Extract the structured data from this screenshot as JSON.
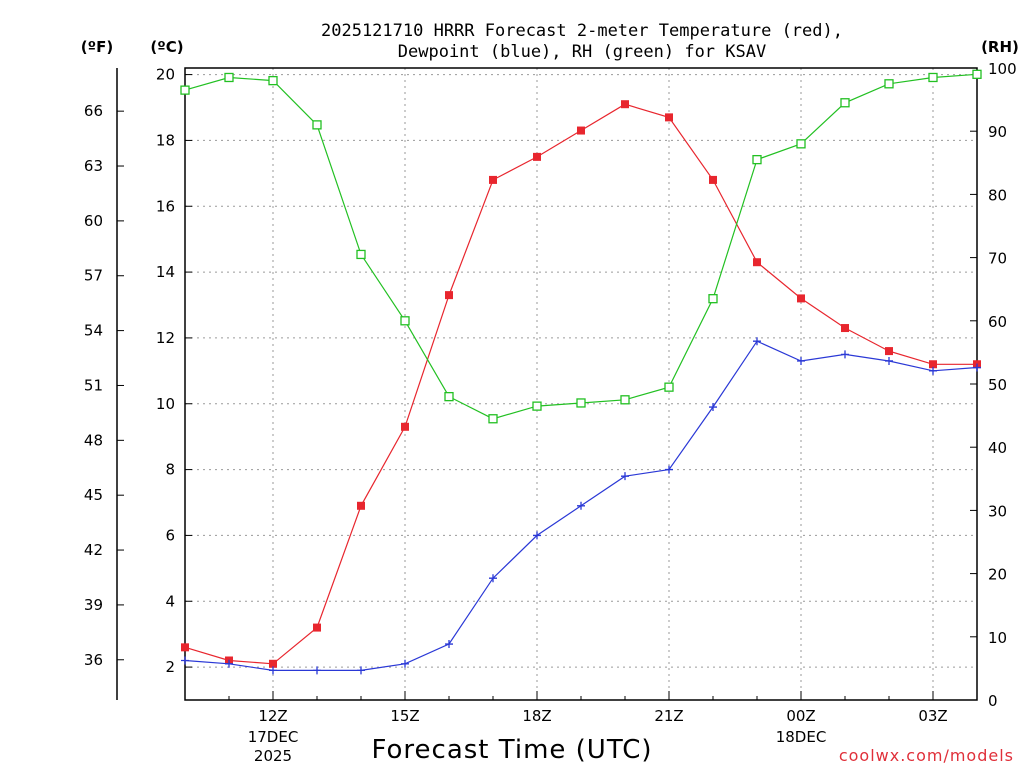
{
  "chart_data": {
    "type": "line",
    "title_line1": "2025121710 HRRR Forecast 2-meter Temperature (red),",
    "title_line2": "Dewpoint (blue), RH (green) for KSAV",
    "xlabel": "Forecast Time (UTC)",
    "credit": "coolwx.com/models",
    "units": {
      "fahrenheit": "(ºF)",
      "celsius": "(ºC)",
      "rh": "(RH)"
    },
    "left_axis_f": {
      "ticks": [
        "36",
        "39",
        "42",
        "45",
        "48",
        "51",
        "54",
        "57",
        "60",
        "63",
        "66"
      ]
    },
    "left_axis_c": {
      "ylim": [
        1.0,
        20.2
      ],
      "ticks": [
        "2",
        "4",
        "6",
        "8",
        "10",
        "12",
        "14",
        "16",
        "18",
        "20"
      ]
    },
    "right_axis_rh": {
      "ylim": [
        0,
        100
      ],
      "ticks": [
        "0",
        "10",
        "20",
        "30",
        "40",
        "50",
        "60",
        "70",
        "80",
        "90",
        "100"
      ]
    },
    "x_ticks": [
      {
        "label": "12Z",
        "sub1": "17DEC",
        "sub2": "2025"
      },
      {
        "label": "15Z",
        "sub1": "",
        "sub2": ""
      },
      {
        "label": "18Z",
        "sub1": "",
        "sub2": ""
      },
      {
        "label": "21Z",
        "sub1": "",
        "sub2": ""
      },
      {
        "label": "00Z",
        "sub1": "18DEC",
        "sub2": ""
      },
      {
        "label": "03Z",
        "sub1": "",
        "sub2": ""
      }
    ],
    "hours": [
      10,
      11,
      12,
      13,
      14,
      15,
      16,
      17,
      18,
      19,
      20,
      21,
      22,
      23,
      24,
      25,
      26,
      27,
      28
    ],
    "xlim_hours": [
      10,
      28
    ],
    "series": [
      {
        "name": "Temperature",
        "unit": "C",
        "color": "#e8262e",
        "marker": "filled-square",
        "values": [
          2.6,
          2.2,
          2.1,
          3.2,
          6.9,
          9.3,
          13.3,
          16.8,
          17.5,
          18.3,
          19.1,
          18.7,
          16.8,
          14.3,
          13.2,
          12.3,
          11.6,
          11.2,
          11.2
        ]
      },
      {
        "name": "Dewpoint",
        "unit": "C",
        "color": "#2a38d6",
        "marker": "plus",
        "values": [
          2.2,
          2.1,
          1.9,
          1.9,
          1.9,
          2.1,
          2.7,
          4.7,
          6.0,
          6.9,
          7.8,
          8.0,
          9.9,
          11.9,
          11.3,
          11.5,
          11.3,
          11.0,
          11.1
        ]
      },
      {
        "name": "RH",
        "unit": "%",
        "color": "#22c022",
        "marker": "open-square",
        "values": [
          96.5,
          98.5,
          98.0,
          91.0,
          70.5,
          60.0,
          48.0,
          44.5,
          46.5,
          47.0,
          47.5,
          49.5,
          63.5,
          85.5,
          88.0,
          94.5,
          97.5,
          98.5,
          99.0
        ]
      }
    ]
  }
}
